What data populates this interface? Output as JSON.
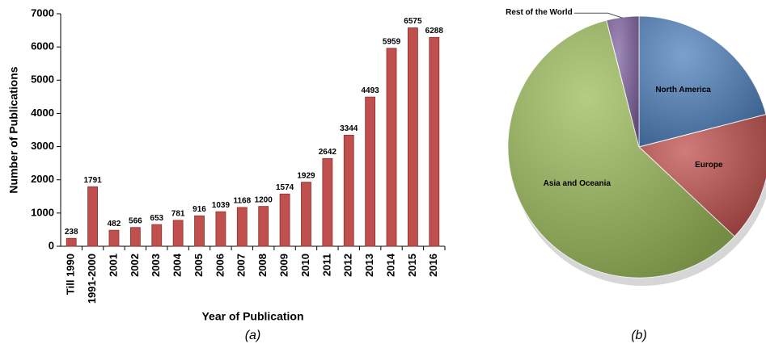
{
  "chart_data": [
    {
      "type": "bar",
      "categories": [
        "Till 1990",
        "1991-2000",
        "2001",
        "2002",
        "2003",
        "2004",
        "2005",
        "2006",
        "2007",
        "2008",
        "2009",
        "2010",
        "2011",
        "2012",
        "2013",
        "2014",
        "2015",
        "2016"
      ],
      "values": [
        238,
        1791,
        482,
        566,
        653,
        781,
        916,
        1039,
        1168,
        1200,
        1574,
        1929,
        2642,
        3344,
        4493,
        5959,
        6575,
        6288
      ],
      "color": "#c0504d",
      "ylim": [
        0,
        7000
      ],
      "yticks": [
        0,
        1000,
        2000,
        3000,
        4000,
        5000,
        6000,
        7000
      ],
      "xlabel": "Year of Publication",
      "ylabel": "Number of Publications",
      "caption": "(a)"
    },
    {
      "type": "pie",
      "categories": [
        "North America",
        "Europe",
        "Asia and Oceania",
        "Rest of the World"
      ],
      "values": [
        21,
        16,
        59,
        4
      ],
      "colors": [
        "#4f81bd",
        "#c0504d",
        "#9bbb59",
        "#8064a2"
      ],
      "caption": "(b)"
    }
  ]
}
